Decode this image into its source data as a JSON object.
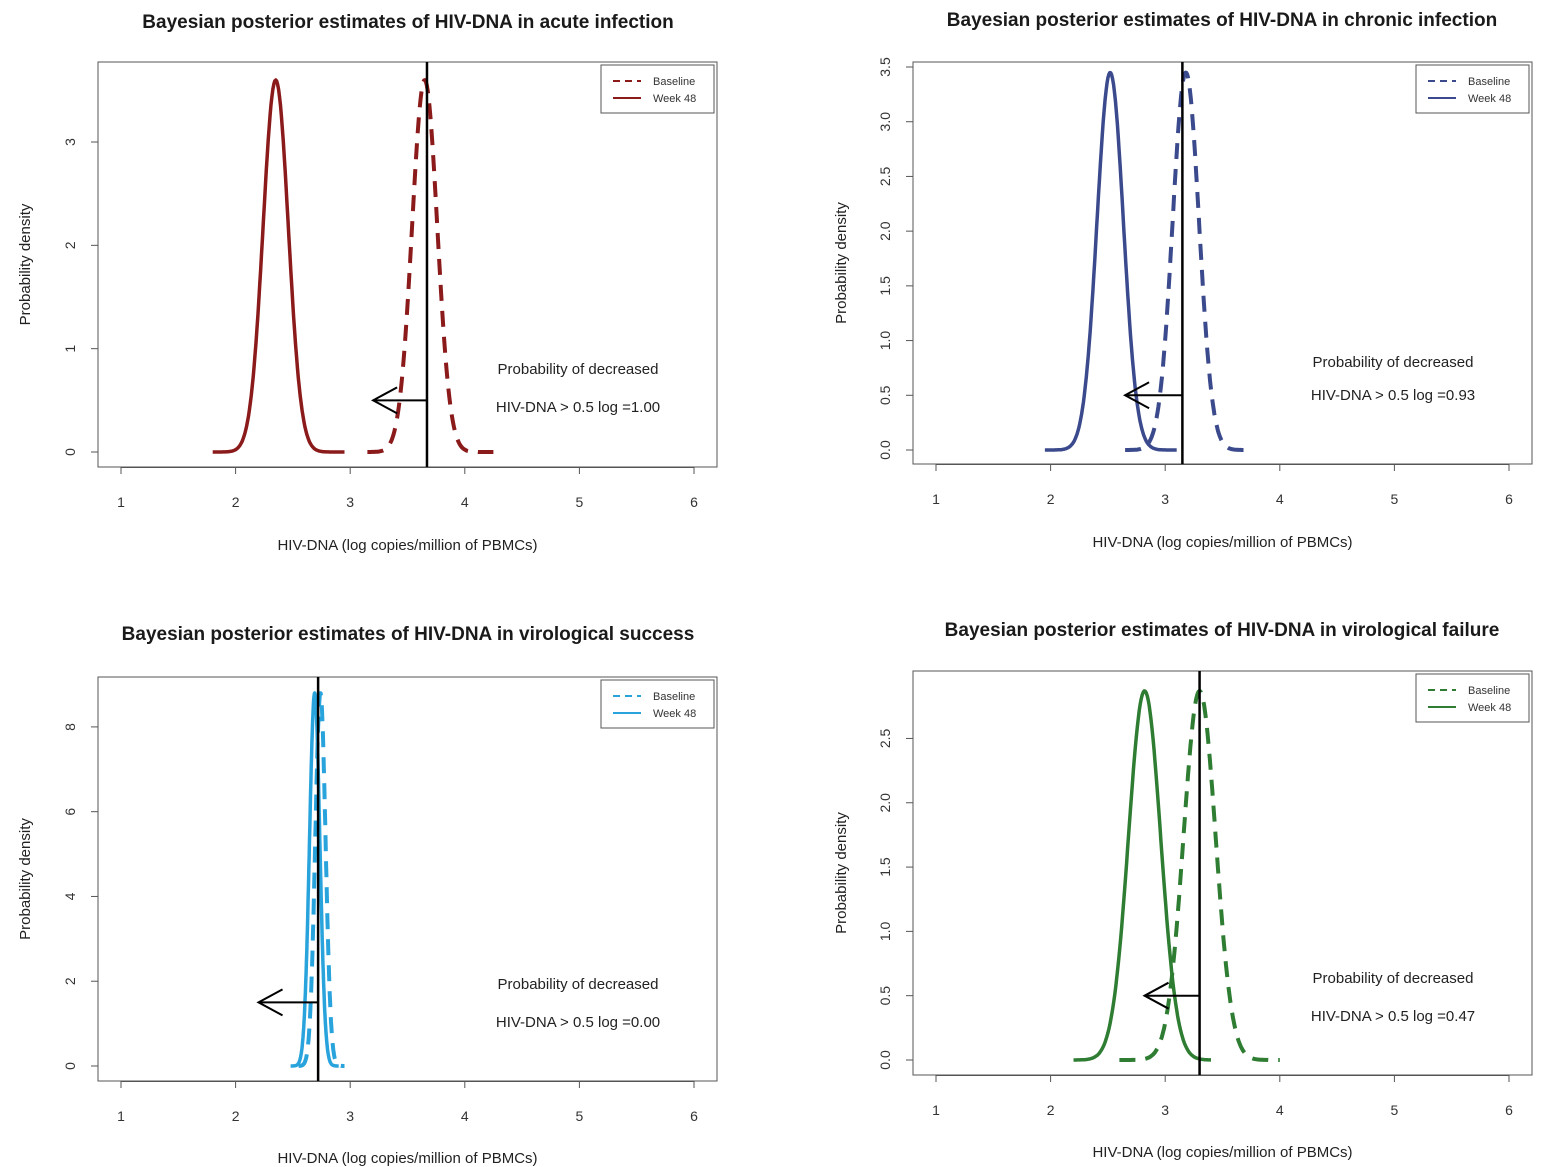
{
  "chart_data": [
    {
      "type": "line",
      "title": "Bayesian posterior estimates of HIV-DNA in acute infection",
      "xlabel": "HIV-DNA (log copies/million of PBMCs)",
      "ylabel": "Probability density",
      "xlim": [
        1,
        6
      ],
      "ylim": [
        0,
        3.6
      ],
      "xticks": [
        "1",
        "2",
        "3",
        "4",
        "5",
        "6"
      ],
      "yticks": [
        "0",
        "1",
        "2",
        "3"
      ],
      "legend_position": "top-right",
      "legend": [
        "Baseline",
        "Week 48"
      ],
      "color": "#8b1a1a",
      "series": [
        {
          "name": "Baseline",
          "style": "dashed",
          "mean": 3.65,
          "sd": 0.11,
          "xmin": 3.15,
          "xmax": 4.25,
          "peak": 3.6
        },
        {
          "name": "Week 48",
          "style": "solid",
          "mean": 2.35,
          "sd": 0.11,
          "xmin": 1.8,
          "xmax": 2.95,
          "peak": 3.6
        }
      ],
      "vline": 3.67,
      "arrow": {
        "from": 3.67,
        "to": 3.2,
        "y": 0.5
      },
      "annotation": [
        "Probability of decreased",
        "HIV-DNA > 0.5 log =1.00"
      ]
    },
    {
      "type": "line",
      "title": "Bayesian posterior estimates of HIV-DNA in chronic infection",
      "xlabel": "HIV-DNA (log copies/million of PBMCs)",
      "ylabel": "Probability density",
      "xlim": [
        1,
        6
      ],
      "ylim": [
        0,
        3.5
      ],
      "xticks": [
        "1",
        "2",
        "3",
        "4",
        "5",
        "6"
      ],
      "yticks": [
        "0.0",
        "0.5",
        "1.0",
        "1.5",
        "2.0",
        "2.5",
        "3.0",
        "3.5"
      ],
      "legend_position": "top-right",
      "legend": [
        "Baseline",
        "Week 48"
      ],
      "color": "#3b4a8c",
      "series": [
        {
          "name": "Baseline",
          "style": "dashed",
          "mean": 3.18,
          "sd": 0.115,
          "xmin": 2.65,
          "xmax": 3.72,
          "peak": 3.45
        },
        {
          "name": "Week 48",
          "style": "solid",
          "mean": 2.52,
          "sd": 0.115,
          "xmin": 1.95,
          "xmax": 3.1,
          "peak": 3.45
        }
      ],
      "vline": 3.15,
      "arrow": {
        "from": 3.15,
        "to": 2.65,
        "y": 0.5
      },
      "annotation": [
        "Probability of decreased",
        "HIV-DNA > 0.5 log =0.93"
      ]
    },
    {
      "type": "line",
      "title": "Bayesian posterior estimates of HIV-DNA in virological success",
      "xlabel": "HIV-DNA (log copies/million of PBMCs)",
      "ylabel": "Probability density",
      "xlim": [
        1,
        6
      ],
      "ylim": [
        0,
        8.8
      ],
      "xticks": [
        "1",
        "2",
        "3",
        "4",
        "5",
        "6"
      ],
      "yticks": [
        "0",
        "2",
        "4",
        "6",
        "8"
      ],
      "legend_position": "top-right",
      "legend": [
        "Baseline",
        "Week 48"
      ],
      "color": "#29a3dc",
      "series": [
        {
          "name": "Baseline",
          "style": "dashed",
          "mean": 2.74,
          "sd": 0.045,
          "xmin": 2.55,
          "xmax": 2.95,
          "peak": 8.8
        },
        {
          "name": "Week 48",
          "style": "solid",
          "mean": 2.69,
          "sd": 0.045,
          "xmin": 2.48,
          "xmax": 2.9,
          "peak": 8.8
        }
      ],
      "vline": 2.72,
      "arrow": {
        "from": 2.72,
        "to": 2.2,
        "y": 1.5
      },
      "annotation": [
        "Probability of decreased",
        "HIV-DNA > 0.5 log =0.00"
      ]
    },
    {
      "type": "line",
      "title": "Bayesian posterior estimates of HIV-DNA in virological failure",
      "xlabel": "HIV-DNA (log copies/million of PBMCs)",
      "ylabel": "Probability density",
      "xlim": [
        1,
        6
      ],
      "ylim": [
        0,
        2.9
      ],
      "xticks": [
        "1",
        "2",
        "3",
        "4",
        "5",
        "6"
      ],
      "yticks": [
        "0.0",
        "0.5",
        "1.0",
        "1.5",
        "2.0",
        "2.5"
      ],
      "legend_position": "top-right",
      "legend": [
        "Baseline",
        "Week 48"
      ],
      "color": "#2e7d32",
      "series": [
        {
          "name": "Baseline",
          "style": "dashed",
          "mean": 3.3,
          "sd": 0.14,
          "xmin": 2.6,
          "xmax": 4.0,
          "peak": 2.87
        },
        {
          "name": "Week 48",
          "style": "solid",
          "mean": 2.82,
          "sd": 0.14,
          "xmin": 2.2,
          "xmax": 3.4,
          "peak": 2.87
        }
      ],
      "vline": 3.3,
      "arrow": {
        "from": 3.3,
        "to": 2.82,
        "y": 0.5
      },
      "annotation": [
        "Probability of decreased",
        "HIV-DNA > 0.5 log =0.47"
      ]
    }
  ]
}
